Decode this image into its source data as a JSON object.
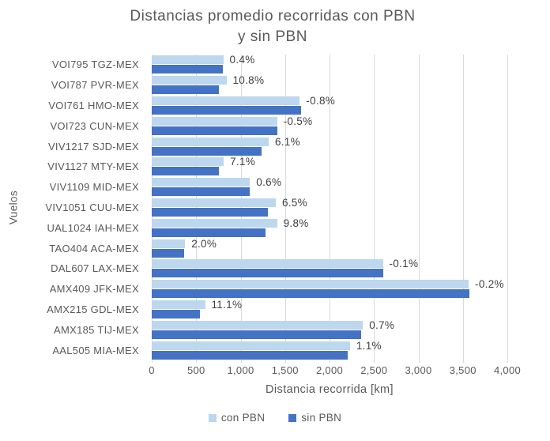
{
  "title": {
    "line1": "Distancias promedio recorridas con PBN",
    "line2": "y sin PBN"
  },
  "colors": {
    "con_pbn": "#BDD7EE",
    "sin_pbn": "#4472C4",
    "gridline": "#D9D9D9",
    "axis_text": "#595959",
    "data_label_text": "#404040"
  },
  "legend": {
    "items": [
      {
        "label": "con PBN",
        "color": "#BDD7EE"
      },
      {
        "label": "sin PBN",
        "color": "#4472C4"
      }
    ]
  },
  "chart_data": {
    "type": "bar",
    "orientation": "horizontal",
    "title": "Distancias promedio recorridas con PBN y sin PBN",
    "xlabel": "Distancia recorrida [km]",
    "ylabel": "Vuelos",
    "xlim": [
      0,
      4000
    ],
    "x_ticks": [
      "0",
      "500",
      "1,000",
      "1,500",
      "2,000",
      "2,500",
      "3,000",
      "3,500",
      "4,000"
    ],
    "grid": true,
    "legend_position": "bottom",
    "categories": [
      "VOI795 TGZ-MEX",
      "VOI787 PVR-MEX",
      "VOI761 HMO-MEX",
      "VOI723 CUN-MEX",
      "VIV1217 SJD-MEX",
      "VIV1127 MTY-MEX",
      "VIV1109 MID-MEX",
      "VIV1051 CUU-MEX",
      "UAL1024 IAH-MEX",
      "TAO404 ACA-MEX",
      "DAL607 LAX-MEX",
      "AMX409 JFK-MEX",
      "AMX215 GDL-MEX",
      "AMX185 TIJ-MEX",
      "AAL505 MIA-MEX"
    ],
    "series": [
      {
        "name": "con PBN",
        "color": "#BDD7EE",
        "values": [
          805,
          840,
          1665,
          1410,
          1315,
          810,
          1105,
          1395,
          1410,
          375,
          2600,
          3565,
          600,
          2375,
          2230
        ]
      },
      {
        "name": "sin PBN",
        "color": "#4472C4",
        "values": [
          802,
          758,
          1678,
          1417,
          1239,
          756,
          1098,
          1310,
          1284,
          368,
          2603,
          3572,
          540,
          2358,
          2206
        ]
      }
    ],
    "data_labels": [
      "0.4%",
      "10.8%",
      "-0.8%",
      "-0.5%",
      "6.1%",
      "7.1%",
      "0.6%",
      "6.5%",
      "9.8%",
      "2.0%",
      "-0.1%",
      "-0.2%",
      "11.1%",
      "0.7%",
      "1.1%"
    ]
  }
}
